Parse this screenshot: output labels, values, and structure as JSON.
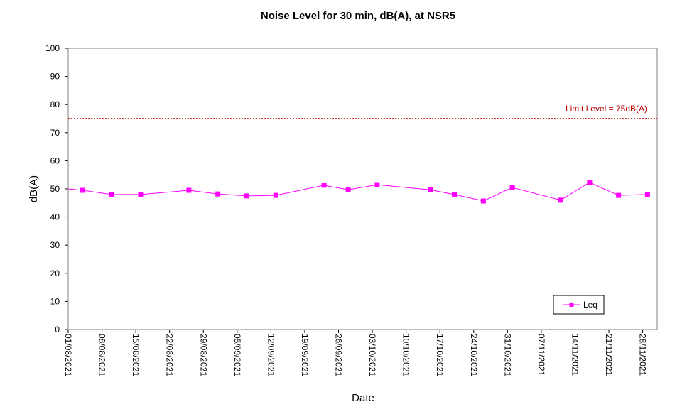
{
  "chart_data": {
    "type": "line",
    "title": "Noise Level for 30 min, dB(A), at NSR5",
    "xlabel": "Date",
    "ylabel": "dB(A)",
    "ylim": [
      0,
      100
    ],
    "yticks": [
      0,
      10,
      20,
      30,
      40,
      50,
      60,
      70,
      80,
      90,
      100
    ],
    "xlim": [
      "2021-08-01",
      "2021-12-01"
    ],
    "xtick_labels": [
      "01/08/2021",
      "08/08/2021",
      "15/08/2021",
      "22/08/2021",
      "29/08/2021",
      "05/09/2021",
      "12/09/2021",
      "19/09/2021",
      "26/09/2021",
      "03/10/2021",
      "10/10/2021",
      "17/10/2021",
      "24/10/2021",
      "31/10/2021",
      "07/11/2021",
      "14/11/2021",
      "21/11/2021",
      "28/11/2021"
    ],
    "limit": {
      "value": 75,
      "label": "Limit Level  = 75dB(A)",
      "color": "#c00000"
    },
    "legend": {
      "position": "bottom-right"
    },
    "series": [
      {
        "name": "Leq",
        "color": "#ff00ff",
        "x": [
          "2021-08-04",
          "2021-08-10",
          "2021-08-16",
          "2021-08-26",
          "2021-09-01",
          "2021-09-07",
          "2021-09-13",
          "2021-09-23",
          "2021-09-28",
          "2021-10-04",
          "2021-10-15",
          "2021-10-20",
          "2021-10-26",
          "2021-11-01",
          "2021-11-11",
          "2021-11-17",
          "2021-11-23",
          "2021-11-29"
        ],
        "values": [
          49.5,
          48.0,
          48.0,
          49.5,
          48.2,
          47.5,
          47.7,
          51.3,
          49.7,
          51.5,
          49.7,
          48.0,
          45.7,
          50.5,
          46.0,
          52.3,
          47.7,
          48.0
        ]
      }
    ]
  }
}
